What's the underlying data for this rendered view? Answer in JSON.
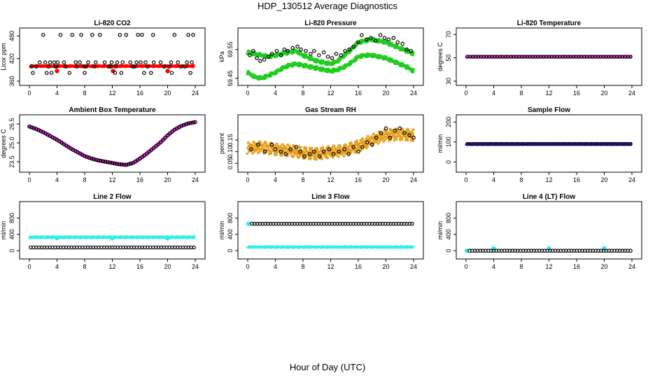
{
  "main_title": "HDP_130512  Average Diagnostics",
  "bottom_label": "Hour of Day (UTC)",
  "chart_data": [
    {
      "type": "scatter",
      "title": "Li-820 CO2",
      "ylabel": "Licor ppm",
      "xlim": [
        0,
        24
      ],
      "ylim": [
        360,
        490
      ],
      "xticks": [
        "0",
        "4",
        "8",
        "12",
        "16",
        "20",
        "24"
      ],
      "yticks": [
        "360",
        "420",
        "480"
      ],
      "series": [
        {
          "color": "#ff0000",
          "style": "band",
          "x": [
            0.2,
            23.8
          ],
          "y": [
            400,
            400
          ],
          "spread": 2
        },
        {
          "color": "#ff0000",
          "style": "points",
          "x": [
            4.0,
            12.1,
            20.0
          ],
          "y": [
            387,
            387,
            387
          ]
        },
        {
          "color": "#000000",
          "style": "points",
          "x": [
            0.5,
            1.0,
            2.0,
            2.8,
            3.8,
            4.5,
            5.3,
            6.2,
            7.5,
            7.9,
            8.2,
            9.1,
            10.2,
            11.5,
            12.5,
            13.1,
            14.0,
            15.2,
            15.7,
            16.3,
            17.1,
            17.9,
            19.5,
            20.2,
            21.0,
            22.5,
            23.0,
            23.7,
            1.5,
            2.3,
            3.0,
            3.6,
            4.1,
            5.0,
            6.7,
            7.3,
            8.5,
            9.6,
            10.9,
            11.9,
            12.7,
            13.5,
            14.6,
            15.5,
            16.1,
            16.8,
            18.0,
            19.0,
            20.5,
            21.5,
            22.8,
            23.5,
            0.3,
            2.5,
            3.2,
            3.9,
            5.8,
            6.9,
            8.0,
            9.4,
            11.8,
            12.4,
            13.3,
            15.0,
            16.6,
            17.6,
            19.5,
            20.6,
            21.9,
            23.3
          ],
          "y": [
            382,
            399,
            483,
            399,
            399,
            483,
            399,
            483,
            483,
            399,
            399,
            483,
            483,
            399,
            399,
            483,
            483,
            399,
            483,
            483,
            399,
            483,
            399,
            399,
            483,
            399,
            483,
            483,
            410,
            410,
            410,
            410,
            410,
            410,
            410,
            410,
            410,
            410,
            410,
            410,
            410,
            410,
            410,
            410,
            410,
            410,
            410,
            410,
            410,
            410,
            410,
            410,
            399,
            382,
            382,
            399,
            382,
            399,
            382,
            399,
            399,
            382,
            382,
            399,
            382,
            382,
            399,
            382,
            399,
            382
          ]
        }
      ]
    },
    {
      "type": "scatter",
      "title": "Li-820 Pressure",
      "ylabel": "kPa",
      "xlim": [
        0,
        24
      ],
      "ylim": [
        69.44,
        69.61
      ],
      "xticks": [
        "0",
        "4",
        "8",
        "12",
        "16",
        "20",
        "24"
      ],
      "yticks": [
        "69.45",
        "69.55"
      ],
      "series": [
        {
          "color": "#22cc22",
          "style": "band",
          "x": [
            0,
            1,
            2,
            3,
            4,
            5,
            6,
            7,
            8,
            9,
            10,
            11,
            12,
            13,
            14,
            15,
            16,
            17,
            18,
            19,
            20,
            21,
            22,
            23,
            24
          ],
          "y": [
            69.54,
            69.535,
            69.53,
            69.525,
            69.53,
            69.535,
            69.54,
            69.545,
            69.53,
            69.52,
            69.51,
            69.505,
            69.5,
            69.51,
            69.53,
            69.55,
            69.575,
            69.58,
            69.585,
            69.58,
            69.575,
            69.565,
            69.555,
            69.545,
            69.535
          ],
          "spread": 0.006
        },
        {
          "color": "#22cc22",
          "style": "band",
          "x": [
            0,
            1,
            2,
            3,
            4,
            5,
            6,
            7,
            8,
            9,
            10,
            11,
            12,
            13,
            14,
            15,
            16,
            17,
            18,
            19,
            20,
            21,
            22,
            23,
            24
          ],
          "y": [
            69.47,
            69.455,
            69.45,
            69.46,
            69.47,
            69.485,
            69.495,
            69.5,
            69.495,
            69.49,
            69.485,
            69.48,
            69.475,
            69.48,
            69.49,
            69.505,
            69.525,
            69.53,
            69.53,
            69.525,
            69.52,
            69.51,
            69.5,
            69.49,
            69.475
          ],
          "spread": 0.006
        },
        {
          "color": "#000000",
          "style": "points",
          "x": [
            0.3,
            0.8,
            1.3,
            1.8,
            2.4,
            3.0,
            3.5,
            4.2,
            4.8,
            5.3,
            5.8,
            6.5,
            7.2,
            7.7,
            8.4,
            9.1,
            9.6,
            10.3,
            11.0,
            11.6,
            12.2,
            12.8,
            13.5,
            14.1,
            14.7,
            15.3,
            16.0,
            16.5,
            17.2,
            17.8,
            18.5,
            19.2,
            19.8,
            20.4,
            21.1,
            21.7,
            22.4,
            23.0,
            23.6
          ],
          "y": [
            69.53,
            69.545,
            69.52,
            69.51,
            69.515,
            69.525,
            69.535,
            69.545,
            69.53,
            69.55,
            69.545,
            69.555,
            69.56,
            69.55,
            69.545,
            69.535,
            69.545,
            69.53,
            69.54,
            69.525,
            69.52,
            69.535,
            69.53,
            69.545,
            69.55,
            69.56,
            69.575,
            69.6,
            69.585,
            69.59,
            69.58,
            69.6,
            69.59,
            69.585,
            69.59,
            69.575,
            69.57,
            69.55,
            69.545
          ]
        }
      ]
    },
    {
      "type": "scatter",
      "title": "Li-820 Temperature",
      "ylabel": "degrees C",
      "xlim": [
        0,
        24
      ],
      "ylim": [
        30,
        72
      ],
      "xticks": [
        "0",
        "4",
        "8",
        "12",
        "16",
        "20",
        "24"
      ],
      "yticks": [
        "30",
        "50",
        "70"
      ],
      "series": [
        {
          "color": "#dd33dd",
          "style": "band",
          "x": [
            0.1,
            23.9
          ],
          "y": [
            51,
            51
          ],
          "spread": 0.5
        },
        {
          "color": "#000000",
          "style": "line-points",
          "x": [
            0.2,
            23.8
          ],
          "y": [
            51,
            51
          ]
        }
      ]
    },
    {
      "type": "scatter",
      "title": "Ambient Box Temperature",
      "ylabel": "degrees C",
      "xlim": [
        0,
        24
      ],
      "ylim": [
        23.0,
        26.9
      ],
      "xticks": [
        "0",
        "4",
        "8",
        "12",
        "16",
        "20",
        "24"
      ],
      "yticks": [
        "23.5",
        "25.0",
        "26.5"
      ],
      "series": [
        {
          "color": "#dd33dd",
          "style": "curve",
          "x": [
            0,
            1,
            2,
            3,
            4,
            5,
            6,
            7,
            8,
            9,
            10,
            11,
            12,
            13,
            14,
            15,
            16,
            17,
            18,
            19,
            20,
            21,
            22,
            23,
            24
          ],
          "y": [
            26.3,
            26.1,
            25.85,
            25.55,
            25.25,
            24.9,
            24.55,
            24.25,
            23.95,
            23.75,
            23.6,
            23.5,
            23.4,
            23.3,
            23.25,
            23.4,
            23.75,
            24.15,
            24.6,
            25.05,
            25.6,
            26.05,
            26.35,
            26.55,
            26.65
          ]
        },
        {
          "color": "#000000",
          "style": "curve-points",
          "x": [
            0,
            1,
            2,
            3,
            4,
            5,
            6,
            7,
            8,
            9,
            10,
            11,
            12,
            13,
            14,
            15,
            16,
            17,
            18,
            19,
            20,
            21,
            22,
            23,
            24
          ],
          "y": [
            26.3,
            26.1,
            25.85,
            25.55,
            25.25,
            24.9,
            24.55,
            24.25,
            23.95,
            23.75,
            23.6,
            23.5,
            23.4,
            23.3,
            23.25,
            23.4,
            23.75,
            24.15,
            24.6,
            25.05,
            25.6,
            26.05,
            26.35,
            26.55,
            26.65
          ]
        }
      ]
    },
    {
      "type": "scatter",
      "title": "Gas Stream RH",
      "ylabel": "percent",
      "xlim": [
        0,
        24
      ],
      "ylim": [
        0.03,
        0.24
      ],
      "xticks": [
        "0",
        "4",
        "8",
        "12",
        "16",
        "20",
        "24"
      ],
      "yticks": [
        "0.05",
        "0.10",
        "0.15"
      ],
      "series": [
        {
          "color": "#e8a020",
          "style": "band",
          "x": [
            0,
            2,
            4,
            6,
            8,
            10,
            12,
            14,
            16,
            18,
            20,
            22,
            24
          ],
          "y": [
            0.115,
            0.12,
            0.11,
            0.105,
            0.095,
            0.09,
            0.1,
            0.105,
            0.125,
            0.15,
            0.17,
            0.175,
            0.17
          ],
          "spread": 0.025
        },
        {
          "color": "#000000",
          "style": "points",
          "x": [
            0.5,
            1.5,
            2.5,
            3.5,
            4.0,
            4.8,
            5.5,
            6.2,
            7.0,
            7.6,
            8.2,
            9.0,
            9.6,
            10.4,
            11.0,
            11.8,
            12.4,
            13.2,
            14.0,
            14.6,
            15.3,
            16.0,
            16.6,
            17.3,
            18.0,
            18.6,
            19.3,
            20.0,
            20.6,
            21.3,
            22.0,
            22.7,
            23.4,
            24.0
          ],
          "y": [
            0.11,
            0.13,
            0.1,
            0.13,
            0.11,
            0.1,
            0.09,
            0.11,
            0.12,
            0.1,
            0.08,
            0.09,
            0.1,
            0.08,
            0.1,
            0.11,
            0.09,
            0.1,
            0.11,
            0.09,
            0.12,
            0.1,
            0.12,
            0.14,
            0.13,
            0.16,
            0.18,
            0.2,
            0.16,
            0.19,
            0.2,
            0.18,
            0.17,
            0.16
          ]
        }
      ]
    },
    {
      "type": "scatter",
      "title": "Sample Flow",
      "ylabel": "ml/min",
      "xlim": [
        0,
        24
      ],
      "ylim": [
        -30,
        215
      ],
      "xticks": [
        "0",
        "4",
        "8",
        "12",
        "16",
        "20",
        "24"
      ],
      "yticks": [
        "0",
        "100",
        "200"
      ],
      "series": [
        {
          "color": "#2222cc",
          "style": "band",
          "x": [
            0.1,
            23.9
          ],
          "y": [
            90,
            90
          ],
          "spread": 3
        },
        {
          "color": "#000000",
          "style": "line-points",
          "x": [
            0.2,
            23.8
          ],
          "y": [
            90,
            90
          ]
        }
      ]
    },
    {
      "type": "scatter",
      "title": "Line 2 Flow",
      "ylabel": "ml/min",
      "xlim": [
        0,
        24
      ],
      "ylim": [
        -100,
        1100
      ],
      "xticks": [
        "0",
        "4",
        "8",
        "12",
        "16",
        "20",
        "24"
      ],
      "yticks": [
        "0",
        "400",
        "800"
      ],
      "series": [
        {
          "color": "#33eeee",
          "style": "band",
          "x": [
            0.1,
            23.9
          ],
          "y": [
            330,
            330
          ],
          "spread": 18
        },
        {
          "color": "#33eeee",
          "style": "points",
          "x": [
            4.0,
            12.0,
            20.0
          ],
          "y": [
            305,
            305,
            305
          ]
        },
        {
          "color": "#000000",
          "style": "line-points",
          "x": [
            0.2,
            23.8
          ],
          "y": [
            80,
            80
          ]
        }
      ]
    },
    {
      "type": "scatter",
      "title": "Line 3 Flow",
      "ylabel": "ml/min",
      "xlim": [
        0,
        24
      ],
      "ylim": [
        -100,
        1100
      ],
      "xticks": [
        "0",
        "4",
        "8",
        "12",
        "16",
        "20",
        "24"
      ],
      "yticks": [
        "0",
        "400",
        "800"
      ],
      "series": [
        {
          "color": "#33eeee",
          "style": "band",
          "x": [
            0.1,
            23.9
          ],
          "y": [
            90,
            90
          ],
          "spread": 15
        },
        {
          "color": "#33eeee",
          "style": "points",
          "x": [
            0.1
          ],
          "y": [
            660
          ]
        },
        {
          "color": "#000000",
          "style": "line-points",
          "x": [
            0.6,
            23.8
          ],
          "y": [
            660,
            660
          ]
        }
      ]
    },
    {
      "type": "scatter",
      "title": "Line 4 (LT) Flow",
      "ylabel": "ml/min",
      "xlim": [
        0,
        24
      ],
      "ylim": [
        -100,
        1100
      ],
      "xticks": [
        "0",
        "4",
        "8",
        "12",
        "16",
        "20",
        "24"
      ],
      "yticks": [
        "0",
        "400",
        "800"
      ],
      "series": [
        {
          "color": "#33eeee",
          "style": "points",
          "x": [
            0.1,
            4.0,
            12.0,
            20.0
          ],
          "y": [
            0,
            60,
            60,
            60
          ]
        },
        {
          "color": "#000000",
          "style": "line-points",
          "x": [
            0.5,
            23.8
          ],
          "y": [
            0,
            0
          ]
        }
      ]
    }
  ]
}
